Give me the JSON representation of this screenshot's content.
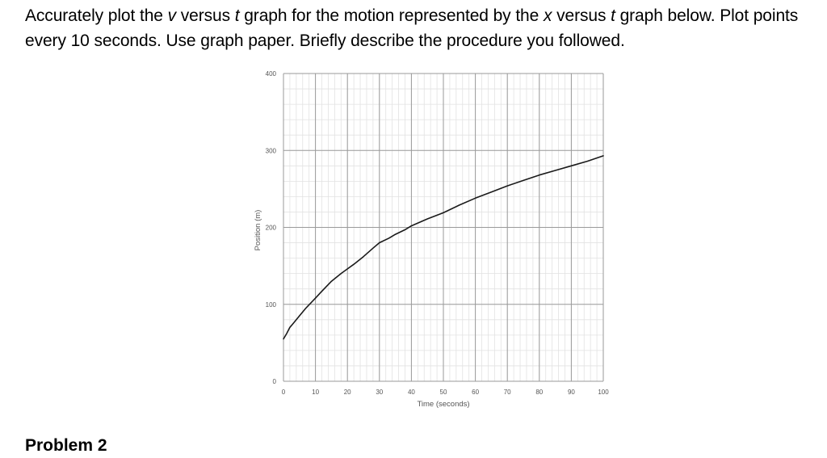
{
  "prompt": {
    "part1": "Accurately plot the ",
    "v": "v",
    "part2": " versus ",
    "t1": "t",
    "part3": " graph for the motion represented by the ",
    "x": "x",
    "part4": " versus ",
    "t2": "t",
    "part5": " graph below. Plot points every 10 seconds. Use graph paper. Briefly describe the procedure you followed."
  },
  "next_heading": "Problem 2",
  "chart_data": {
    "type": "line",
    "xlabel": "Time (seconds)",
    "ylabel": "Position (m)",
    "xlim": [
      0,
      100
    ],
    "ylim": [
      0,
      400
    ],
    "x_ticks": [
      0,
      10,
      20,
      30,
      40,
      50,
      60,
      70,
      80,
      90,
      100
    ],
    "y_ticks": [
      0,
      100,
      200,
      300,
      400
    ],
    "grid": true,
    "series": [
      {
        "color": "#1a1a1a",
        "x": [
          0,
          1,
          2,
          3,
          5,
          7,
          10,
          12,
          15,
          18,
          20,
          22,
          25,
          28,
          30,
          33,
          35,
          38,
          40,
          45,
          50,
          55,
          60,
          65,
          70,
          75,
          80,
          85,
          90,
          95,
          100
        ],
        "y": [
          55,
          62,
          70,
          75,
          85,
          95,
          108,
          117,
          130,
          140,
          146,
          152,
          162,
          173,
          180,
          186,
          191,
          197,
          202,
          211,
          219,
          229,
          238,
          246,
          254,
          261,
          268,
          274,
          280,
          286,
          293
        ]
      }
    ]
  }
}
